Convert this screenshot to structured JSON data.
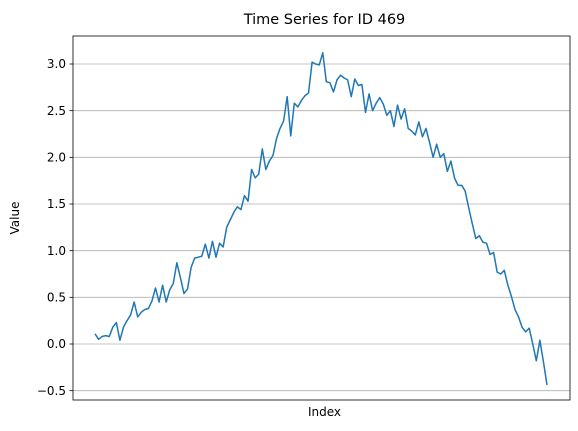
{
  "chart_data": {
    "type": "line",
    "title": "Time Series for ID 469",
    "xlabel": "Index",
    "ylabel": "Value",
    "ylim": [
      -0.6,
      3.3
    ],
    "yticks": [
      -0.5,
      0.0,
      0.5,
      1.0,
      1.5,
      2.0,
      2.5,
      3.0
    ],
    "ytick_labels": [
      "−0.5",
      "0.0",
      "0.5",
      "1.0",
      "1.5",
      "2.0",
      "2.5",
      "3.0"
    ],
    "grid": "horizontal",
    "color": "#1f77b4",
    "series": [
      {
        "values": [
          0.11,
          0.05,
          0.08,
          0.09,
          0.08,
          0.18,
          0.23,
          0.04,
          0.18,
          0.25,
          0.31,
          0.45,
          0.29,
          0.34,
          0.37,
          0.38,
          0.46,
          0.6,
          0.45,
          0.63,
          0.45,
          0.58,
          0.65,
          0.87,
          0.71,
          0.54,
          0.59,
          0.82,
          0.92,
          0.93,
          0.94,
          1.07,
          0.92,
          1.1,
          0.93,
          1.08,
          1.04,
          1.25,
          1.33,
          1.41,
          1.47,
          1.44,
          1.59,
          1.53,
          1.87,
          1.78,
          1.82,
          2.09,
          1.87,
          1.96,
          2.02,
          2.2,
          2.31,
          2.39,
          2.65,
          2.23,
          2.58,
          2.54,
          2.61,
          2.66,
          2.69,
          3.02,
          3.0,
          2.99,
          3.12,
          2.81,
          2.8,
          2.7,
          2.83,
          2.88,
          2.85,
          2.83,
          2.65,
          2.84,
          2.77,
          2.78,
          2.48,
          2.68,
          2.5,
          2.58,
          2.64,
          2.57,
          2.45,
          2.5,
          2.33,
          2.56,
          2.41,
          2.52,
          2.31,
          2.28,
          2.24,
          2.38,
          2.22,
          2.31,
          2.16,
          2.0,
          2.14,
          2.0,
          2.04,
          1.85,
          1.96,
          1.78,
          1.7,
          1.7,
          1.64,
          1.46,
          1.29,
          1.13,
          1.16,
          1.09,
          1.08,
          0.96,
          0.98,
          0.77,
          0.75,
          0.79,
          0.63,
          0.51,
          0.37,
          0.29,
          0.18,
          0.13,
          0.17,
          0.0,
          -0.18,
          0.04,
          -0.19,
          -0.44
        ]
      }
    ]
  }
}
